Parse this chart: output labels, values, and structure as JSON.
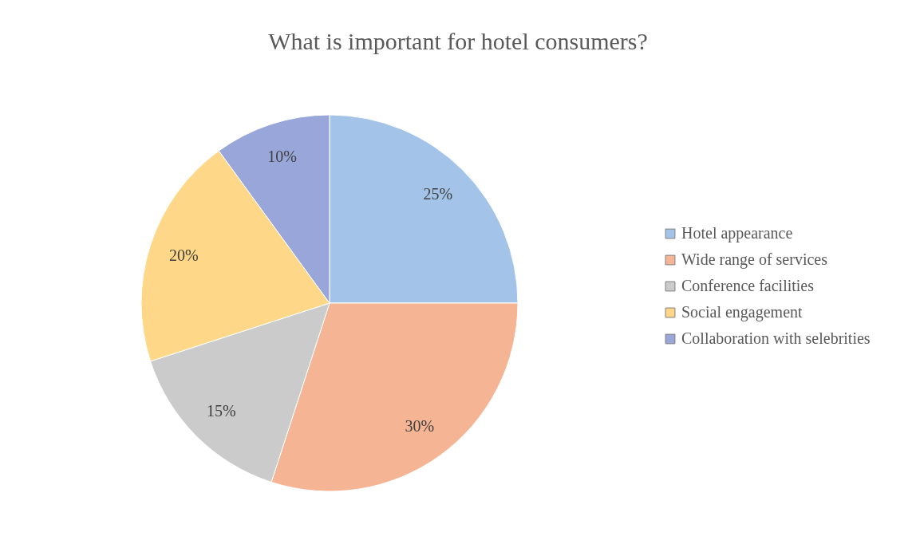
{
  "chart_data": {
    "type": "pie",
    "title": "What is important for hotel consumers?",
    "categories": [
      "Hotel appearance",
      "Wide range of services",
      "Conference facilities",
      "Social engagement",
      "Collaboration with selebrities"
    ],
    "values": [
      25,
      30,
      15,
      20,
      10
    ],
    "colors": [
      "#a3c4e8",
      "#f5b595",
      "#cbcbcb",
      "#fed888",
      "#98a6da"
    ],
    "value_labels": [
      "25%",
      "30%",
      "15%",
      "20%",
      "10%"
    ],
    "legend": "right"
  }
}
